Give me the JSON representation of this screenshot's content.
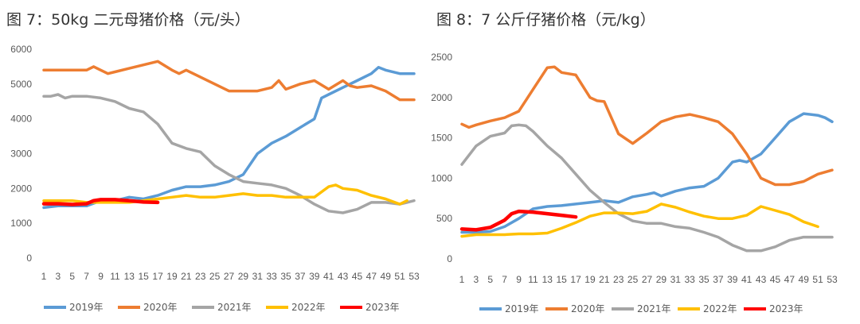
{
  "chart_data": [
    {
      "type": "line",
      "title": "图 7：50kg 二元母猪价格（元/头）",
      "ylim": [
        0,
        6000
      ],
      "yticks": [
        "0",
        "1000",
        "2000",
        "3000",
        "4000",
        "5000",
        "6000"
      ],
      "xlim": [
        1,
        53
      ],
      "xticks": [
        "1",
        "3",
        "5",
        "7",
        "9",
        "11",
        "13",
        "15",
        "17",
        "19",
        "21",
        "23",
        "25",
        "27",
        "29",
        "31",
        "33",
        "35",
        "37",
        "39",
        "41",
        "43",
        "45",
        "47",
        "49",
        "51",
        "53"
      ],
      "grid": false,
      "legend_position": "bottom",
      "series": [
        {
          "name": "2019年",
          "color": "#5B9BD5",
          "x": [
            1,
            3,
            5,
            7,
            9,
            11,
            13,
            15,
            17,
            19,
            21,
            23,
            25,
            27,
            29,
            31,
            33,
            35,
            37,
            39,
            40,
            41,
            43,
            45,
            47,
            48,
            49,
            51,
            53
          ],
          "values": [
            1450,
            1500,
            1500,
            1500,
            1650,
            1650,
            1750,
            1700,
            1800,
            1950,
            2050,
            2050,
            2100,
            2200,
            2400,
            3000,
            3300,
            3500,
            3750,
            4000,
            4600,
            4700,
            4900,
            5100,
            5300,
            5480,
            5400,
            5300,
            5300
          ]
        },
        {
          "name": "2020年",
          "color": "#ED7D31",
          "x": [
            1,
            3,
            5,
            7,
            8,
            9,
            10,
            11,
            13,
            15,
            17,
            19,
            20,
            21,
            23,
            25,
            27,
            29,
            31,
            33,
            34,
            35,
            37,
            39,
            41,
            43,
            44,
            45,
            47,
            49,
            51,
            53
          ],
          "values": [
            5400,
            5400,
            5400,
            5400,
            5500,
            5400,
            5300,
            5350,
            5450,
            5550,
            5650,
            5400,
            5300,
            5400,
            5200,
            5000,
            4800,
            4800,
            4800,
            4900,
            5100,
            4850,
            5000,
            5100,
            4850,
            5100,
            4950,
            4900,
            4950,
            4800,
            4550,
            4550
          ]
        },
        {
          "name": "2021年",
          "color": "#A5A5A5",
          "x": [
            1,
            2,
            3,
            4,
            5,
            7,
            9,
            11,
            13,
            15,
            17,
            19,
            21,
            23,
            25,
            27,
            29,
            31,
            33,
            35,
            37,
            39,
            41,
            43,
            45,
            47,
            49,
            51,
            53
          ],
          "values": [
            4650,
            4650,
            4700,
            4600,
            4650,
            4650,
            4600,
            4500,
            4300,
            4200,
            3850,
            3300,
            3150,
            3050,
            2650,
            2400,
            2200,
            2150,
            2100,
            2000,
            1800,
            1550,
            1350,
            1300,
            1400,
            1600,
            1600,
            1550,
            1650
          ]
        },
        {
          "name": "2022年",
          "color": "#FFC000",
          "x": [
            1,
            3,
            5,
            7,
            9,
            11,
            13,
            15,
            17,
            19,
            21,
            23,
            25,
            27,
            29,
            31,
            33,
            35,
            37,
            39,
            41,
            42,
            43,
            45,
            47,
            49,
            51,
            52
          ],
          "values": [
            1650,
            1650,
            1650,
            1600,
            1600,
            1600,
            1600,
            1650,
            1700,
            1750,
            1800,
            1750,
            1750,
            1800,
            1850,
            1800,
            1800,
            1750,
            1750,
            1750,
            2050,
            2100,
            2000,
            1950,
            1800,
            1700,
            1550,
            1650
          ]
        },
        {
          "name": "2023年",
          "color": "#FF0000",
          "x": [
            1,
            3,
            5,
            7,
            8,
            9,
            11,
            13,
            15,
            17
          ],
          "values": [
            1560,
            1560,
            1540,
            1560,
            1650,
            1680,
            1680,
            1650,
            1610,
            1600
          ]
        }
      ]
    },
    {
      "type": "line",
      "title": "图 8：7 公斤仔猪价格（元/kg）",
      "ylim": [
        0,
        2500
      ],
      "yticks": [
        "0",
        "500",
        "1000",
        "1500",
        "2000",
        "2500"
      ],
      "xlim": [
        1,
        53
      ],
      "xticks": [
        "1",
        "3",
        "5",
        "7",
        "9",
        "11",
        "13",
        "15",
        "17",
        "19",
        "21",
        "23",
        "25",
        "27",
        "29",
        "31",
        "33",
        "35",
        "37",
        "39",
        "41",
        "43",
        "45",
        "47",
        "49",
        "51",
        "53"
      ],
      "grid": false,
      "legend_position": "bottom",
      "series": [
        {
          "name": "2019年",
          "color": "#5B9BD5",
          "x": [
            1,
            3,
            5,
            7,
            9,
            11,
            13,
            15,
            17,
            19,
            21,
            23,
            25,
            27,
            28,
            29,
            31,
            33,
            35,
            37,
            39,
            40,
            41,
            43,
            45,
            47,
            49,
            51,
            52,
            53
          ],
          "values": [
            330,
            330,
            340,
            400,
            500,
            620,
            650,
            660,
            680,
            700,
            720,
            700,
            770,
            800,
            820,
            780,
            840,
            880,
            900,
            1000,
            1200,
            1220,
            1200,
            1300,
            1500,
            1700,
            1800,
            1780,
            1750,
            1700
          ]
        },
        {
          "name": "2020年",
          "color": "#ED7D31",
          "x": [
            1,
            2,
            3,
            5,
            7,
            9,
            11,
            13,
            14,
            15,
            17,
            19,
            20,
            21,
            23,
            25,
            27,
            29,
            31,
            33,
            35,
            37,
            39,
            41,
            43,
            45,
            47,
            49,
            51,
            53
          ],
          "values": [
            1670,
            1630,
            1660,
            1710,
            1750,
            1830,
            2100,
            2370,
            2380,
            2310,
            2280,
            2000,
            1960,
            1950,
            1550,
            1430,
            1560,
            1700,
            1760,
            1790,
            1750,
            1700,
            1550,
            1300,
            1000,
            920,
            920,
            960,
            1050,
            1100
          ]
        },
        {
          "name": "2021年",
          "color": "#A5A5A5",
          "x": [
            1,
            3,
            5,
            7,
            8,
            9,
            10,
            11,
            13,
            15,
            17,
            19,
            21,
            23,
            25,
            27,
            29,
            31,
            33,
            35,
            37,
            39,
            41,
            43,
            45,
            47,
            49,
            51,
            53
          ],
          "values": [
            1170,
            1400,
            1520,
            1560,
            1650,
            1660,
            1650,
            1580,
            1400,
            1250,
            1050,
            850,
            700,
            560,
            470,
            440,
            440,
            400,
            380,
            330,
            270,
            170,
            100,
            100,
            150,
            230,
            270,
            270,
            270
          ]
        },
        {
          "name": "2022年",
          "color": "#FFC000",
          "x": [
            1,
            3,
            5,
            7,
            9,
            11,
            13,
            15,
            17,
            19,
            21,
            23,
            25,
            27,
            29,
            31,
            33,
            35,
            37,
            39,
            41,
            43,
            45,
            47,
            49,
            51
          ],
          "values": [
            280,
            300,
            300,
            300,
            310,
            310,
            320,
            380,
            450,
            530,
            570,
            570,
            560,
            590,
            680,
            640,
            580,
            530,
            500,
            500,
            540,
            650,
            600,
            550,
            460,
            400
          ]
        },
        {
          "name": "2023年",
          "color": "#FF0000",
          "x": [
            1,
            3,
            5,
            7,
            8,
            9,
            11,
            13,
            15,
            17
          ],
          "values": [
            370,
            360,
            390,
            480,
            560,
            590,
            580,
            560,
            540,
            520
          ]
        }
      ]
    }
  ]
}
